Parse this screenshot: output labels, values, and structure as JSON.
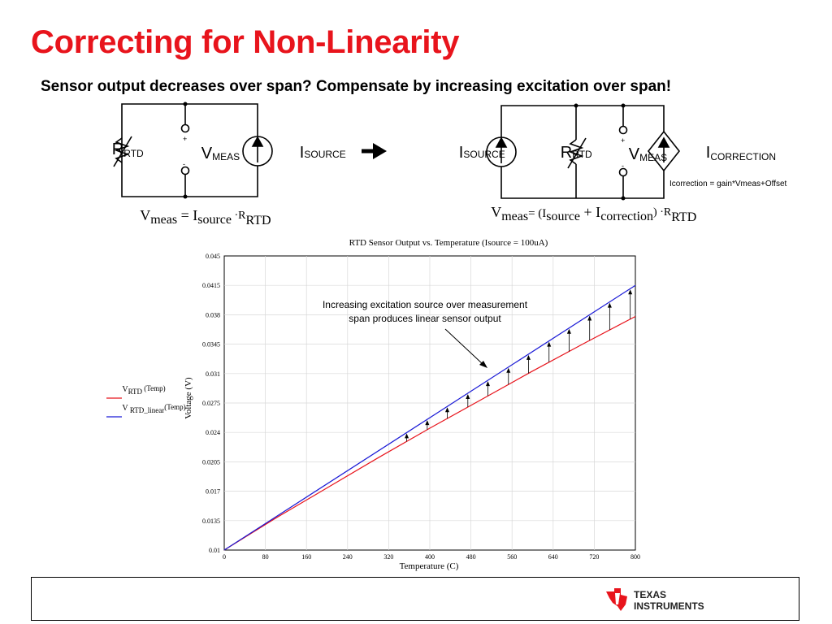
{
  "slide": {
    "title": "Correcting for Non-Linearity",
    "subtitle": "Sensor output decreases over span?  Compensate by increasing excitation over span!"
  },
  "left_circuit": {
    "r_label": "R",
    "r_sub": "RTD",
    "v_label": "V",
    "v_sub": "MEAS",
    "plus": "+",
    "minus": "-",
    "i_label": "I",
    "i_sub": "SOURCE",
    "eq_v": "V",
    "eq_v_sub": "meas",
    "eq_eq": " = I",
    "eq_i_sub": "source",
    "eq_dot": " ·R",
    "eq_r_sub": "RTD"
  },
  "arrow_icon": "right-arrow-icon",
  "right_circuit": {
    "i_label": "I",
    "i_sub": "SOURCE",
    "r_label": "R",
    "r_sub": "RTD",
    "v_label": "V",
    "v_sub": "MEAS",
    "plus": "+",
    "minus": "-",
    "ic_label": "I",
    "ic_sub": "CORRECTION",
    "ic_formula": "Icorrection = gain*Vmeas+Offset",
    "eq_v": "V",
    "eq_v_sub": "meas",
    "eq_eq": "= (I",
    "eq_i_sub": "source",
    "eq_plus": " + I",
    "eq_c_sub": "correction",
    "eq_close": ") ·R",
    "eq_r_sub": "RTD"
  },
  "legend": {
    "v1": "V",
    "v1_sub": "RTD",
    "v1_arg": " (Temp)",
    "v2": "V",
    "v2_sub": " RTD_linear",
    "v2_arg": "(Temp)",
    "colors": {
      "rtd": "#e8141c",
      "linear": "#1a1ad6"
    }
  },
  "annotation": {
    "line1": "Increasing excitation source over measurement",
    "line2": "span produces linear sensor output"
  },
  "chart_data": {
    "type": "line",
    "title": "RTD Sensor Output vs. Temperature (Isource = 100uA)",
    "xlabel": "Temperature (C)",
    "ylabel": "Voltage (V)",
    "xlim": [
      0,
      800
    ],
    "ylim": [
      0.01,
      0.045
    ],
    "x_ticks": [
      "0",
      "80",
      "160",
      "240",
      "320",
      "400",
      "480",
      "560",
      "640",
      "720",
      "800"
    ],
    "y_ticks": [
      "0.045",
      "0.0415",
      "0.038",
      "0.0345",
      "0.031",
      "0.0275",
      "0.024",
      "0.0205",
      "0.017",
      "0.0135",
      "0.01"
    ],
    "series": [
      {
        "key": "rtd",
        "color": "#e8141c",
        "x": [
          0,
          100,
          200,
          300,
          400,
          500,
          600,
          700,
          800
        ],
        "y": [
          0.01,
          0.0138,
          0.0174,
          0.021,
          0.0245,
          0.0279,
          0.0313,
          0.0346,
          0.0378
        ]
      },
      {
        "key": "linear",
        "color": "#1a1ad6",
        "x": [
          0,
          800
        ],
        "y": [
          0.01,
          0.0415
        ]
      }
    ],
    "correction_arrows_x": [
      355,
      395,
      434,
      474,
      513,
      553,
      592,
      632,
      671,
      711,
      750,
      790
    ]
  }
}
